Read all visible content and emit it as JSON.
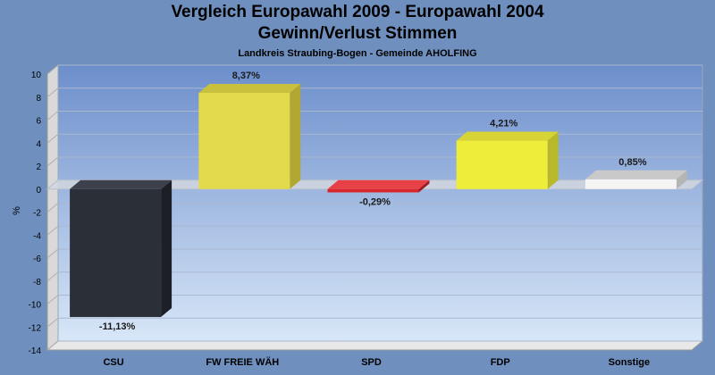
{
  "chart_data": {
    "type": "bar",
    "title": "Vergleich Europawahl 2009 - Europawahl 2004",
    "subtitle": "Gewinn/Verlust Stimmen",
    "caption": "Landkreis Straubing-Bogen - Gemeinde AHOLFING",
    "ylabel": "%",
    "xlabel": "",
    "ylim": [
      -14,
      10
    ],
    "yticks": [
      10,
      8,
      6,
      4,
      2,
      0,
      -2,
      -4,
      -6,
      -8,
      -10,
      -12,
      -14
    ],
    "grid": true,
    "categories": [
      "CSU",
      "FW FREIE WÄH",
      "SPD",
      "FDP",
      "Sonstige"
    ],
    "values": [
      -11.13,
      8.37,
      -0.29,
      4.21,
      0.85
    ],
    "value_labels": [
      "-11,13%",
      "8,37%",
      "-0,29%",
      "4,21%",
      "0,85%"
    ],
    "colors": [
      "#2b2f38",
      "#e3d94c",
      "#d9252c",
      "#eeee3a",
      "#f4f4f4"
    ],
    "side_colors": [
      "#1c1f26",
      "#b0a832",
      "#9e1a20",
      "#b9b82a",
      "#b4b4b4"
    ],
    "top_colors": [
      "#3c414c",
      "#c9c13e",
      "#e84047",
      "#d6d434",
      "#c9c9c9"
    ],
    "background_color": "#6f8fbe",
    "plot_gradient": [
      "#6c8ecb",
      "#d8e7f8"
    ]
  }
}
